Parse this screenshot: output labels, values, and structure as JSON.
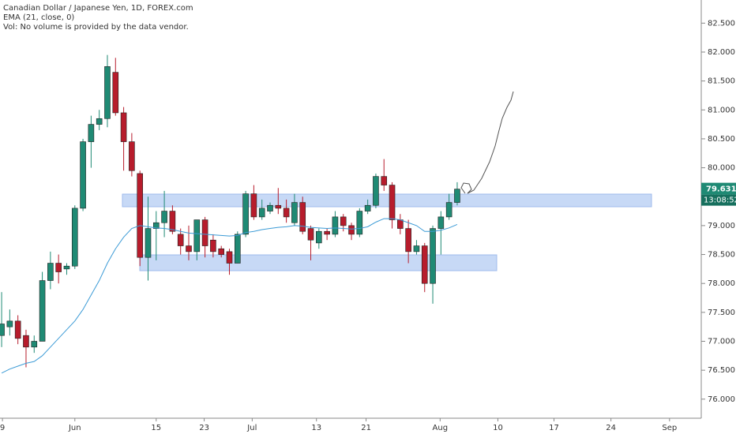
{
  "chart_data": {
    "type": "candlestick",
    "title": "Canadian Dollar / Japanese Yen, 1D, FOREX.com",
    "volume_note": "Vol: No volume is provided by the data vendor.",
    "up_color": "#1f8a74",
    "down_color": "#b71c2c",
    "open": [
      77.1,
      77.25,
      77.35,
      77.1,
      76.9,
      77.0,
      78.05,
      78.35,
      78.25,
      78.3,
      79.3,
      80.45,
      80.75,
      80.85,
      81.65,
      80.95,
      80.45,
      79.9,
      78.45,
      78.95,
      79.05,
      79.25,
      78.85,
      78.65,
      78.55,
      79.1,
      78.75,
      78.6,
      78.55,
      78.35,
      78.85,
      79.55,
      79.15,
      79.25,
      79.35,
      79.3,
      79.05,
      79.4,
      78.95,
      78.7,
      78.9,
      78.85,
      79.15,
      79.0,
      78.85,
      79.25,
      79.35,
      79.85,
      79.7,
      79.1,
      78.95,
      78.55,
      78.65,
      78.0,
      78.95,
      79.15,
      79.4
    ],
    "high": [
      77.85,
      77.55,
      77.45,
      77.2,
      77.1,
      78.2,
      78.55,
      78.5,
      78.35,
      79.35,
      80.5,
      80.9,
      81.0,
      81.95,
      81.9,
      81.05,
      80.6,
      79.95,
      79.5,
      79.25,
      79.6,
      79.35,
      78.95,
      79.0,
      79.1,
      79.15,
      78.85,
      78.65,
      78.6,
      78.9,
      79.6,
      79.7,
      79.45,
      79.4,
      79.65,
      79.45,
      79.55,
      79.5,
      79.0,
      78.95,
      78.95,
      79.25,
      79.2,
      79.05,
      79.3,
      79.45,
      79.9,
      80.15,
      79.75,
      79.2,
      79.1,
      78.75,
      78.7,
      79.0,
      79.25,
      79.55,
      79.75
    ],
    "low": [
      76.9,
      77.1,
      76.95,
      76.55,
      76.8,
      77.0,
      77.9,
      78.0,
      78.15,
      78.25,
      79.25,
      80.0,
      80.65,
      80.7,
      80.9,
      79.95,
      79.85,
      78.3,
      78.05,
      78.4,
      78.8,
      78.85,
      78.5,
      78.4,
      78.4,
      78.45,
      78.45,
      78.45,
      78.15,
      78.35,
      78.8,
      79.1,
      79.1,
      79.2,
      79.2,
      79.05,
      79.0,
      78.85,
      78.4,
      78.6,
      78.75,
      78.8,
      78.9,
      78.75,
      78.8,
      79.2,
      79.3,
      79.6,
      78.95,
      78.85,
      78.35,
      78.5,
      77.85,
      77.65,
      78.5,
      79.1,
      79.35
    ],
    "close": [
      77.3,
      77.35,
      77.05,
      76.9,
      77.0,
      78.05,
      78.35,
      78.2,
      78.3,
      79.3,
      80.45,
      80.75,
      80.85,
      81.75,
      80.95,
      80.45,
      79.95,
      78.45,
      78.95,
      79.05,
      79.25,
      78.9,
      78.65,
      78.55,
      79.1,
      78.65,
      78.55,
      78.5,
      78.35,
      78.85,
      79.55,
      79.15,
      79.3,
      79.35,
      79.3,
      79.15,
      79.4,
      78.9,
      78.75,
      78.9,
      78.85,
      79.15,
      79.0,
      78.85,
      79.25,
      79.35,
      79.85,
      79.7,
      79.1,
      78.95,
      78.55,
      78.65,
      78.0,
      78.95,
      79.15,
      79.4,
      79.631
    ],
    "series": [
      {
        "name": "EMA (21, close, 0)",
        "color": "#3c9bd6",
        "values": [
          76.45,
          76.52,
          76.57,
          76.62,
          76.65,
          76.75,
          76.9,
          77.05,
          77.2,
          77.35,
          77.55,
          77.8,
          78.05,
          78.35,
          78.6,
          78.8,
          78.95,
          79.0,
          78.98,
          78.96,
          78.95,
          78.93,
          78.9,
          78.87,
          78.86,
          78.85,
          78.84,
          78.83,
          78.82,
          78.83,
          78.88,
          78.9,
          78.93,
          78.95,
          78.97,
          78.98,
          79.0,
          78.99,
          78.97,
          78.96,
          78.95,
          78.96,
          78.95,
          78.94,
          78.95,
          78.98,
          79.06,
          79.12,
          79.12,
          79.1,
          79.05,
          79.0,
          78.9,
          78.9,
          78.92,
          78.96,
          79.02
        ]
      }
    ],
    "last_price_label": "79.631",
    "countdown": "13:08:52",
    "ylim": [
      75.67,
      82.9
    ],
    "yticks": [
      {
        "value": 76,
        "label": "76.000"
      },
      {
        "value": 76.5,
        "label": "76.500"
      },
      {
        "value": 77,
        "label": "77.000"
      },
      {
        "value": 77.5,
        "label": "77.500"
      },
      {
        "value": 78,
        "label": "78.000"
      },
      {
        "value": 78.5,
        "label": "78.500"
      },
      {
        "value": 79,
        "label": "79.000"
      },
      {
        "value": 79.5,
        "label": "79.500"
      },
      {
        "value": 80,
        "label": "80.000"
      },
      {
        "value": 80.5,
        "label": "80.500"
      },
      {
        "value": 81,
        "label": "81.000"
      },
      {
        "value": 81.5,
        "label": "81.500"
      },
      {
        "value": 82,
        "label": "82.000"
      },
      {
        "value": 82.5,
        "label": "82.500"
      }
    ],
    "xlim": [
      -0.2,
      86.0
    ],
    "xticks": [
      {
        "value": 0.1,
        "label": "9"
      },
      {
        "value": 9.0,
        "label": "Jun"
      },
      {
        "value": 19.0,
        "label": "15"
      },
      {
        "value": 24.9,
        "label": "23"
      },
      {
        "value": 30.8,
        "label": "Jul"
      },
      {
        "value": 38.7,
        "label": "13"
      },
      {
        "value": 44.8,
        "label": "21"
      },
      {
        "value": 53.9,
        "label": "Aug"
      },
      {
        "value": 61.0,
        "label": "10"
      },
      {
        "value": 67.9,
        "label": "17"
      },
      {
        "value": 74.9,
        "label": "24"
      },
      {
        "value": 82.1,
        "label": "Sep"
      }
    ]
  }
}
